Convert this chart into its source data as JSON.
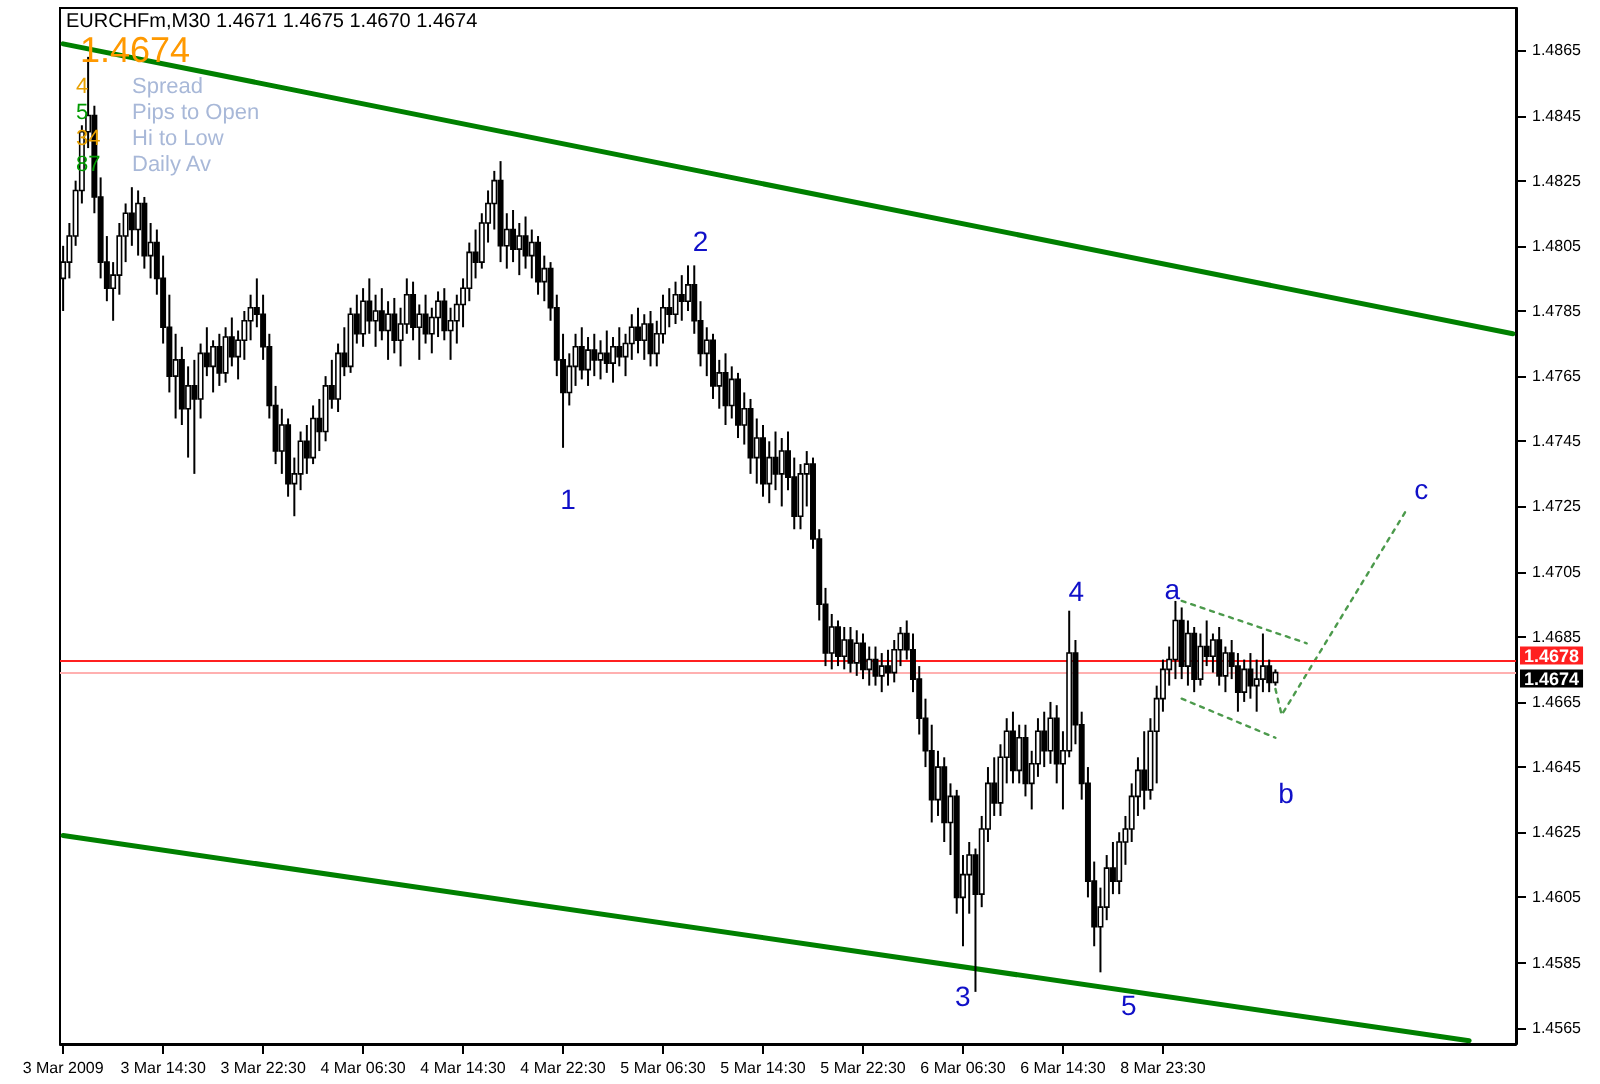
{
  "chart_data": {
    "type": "candlestick",
    "title": "EURCHFm,M30 1.4671 1.4675 1.4670 1.4674",
    "color": "#000000",
    "annotations": [
      "1.4674",
      "4",
      "Spread",
      "5",
      "Pips to Open",
      "34",
      "Hi to Low",
      "87",
      "Daily Av",
      "1",
      "2",
      "3",
      "4",
      "5",
      "a",
      "b",
      "c"
    ],
    "categories": [
      "3 Mar 2009",
      null,
      null,
      null,
      null,
      null,
      null,
      null,
      null,
      null,
      null,
      null,
      null,
      null,
      null,
      null,
      "3 Mar 14:30",
      null,
      null,
      null,
      null,
      null,
      null,
      null,
      null,
      null,
      null,
      null,
      null,
      null,
      null,
      null,
      "3 Mar 22:30",
      null,
      null,
      null,
      null,
      null,
      null,
      null,
      null,
      null,
      null,
      null,
      null,
      null,
      null,
      null,
      "4 Mar 06:30",
      null,
      null,
      null,
      null,
      null,
      null,
      null,
      null,
      null,
      null,
      null,
      null,
      null,
      null,
      null,
      "4 Mar 14:30",
      null,
      null,
      null,
      null,
      null,
      null,
      null,
      null,
      null,
      null,
      null,
      null,
      null,
      null,
      null,
      "4 Mar 22:30",
      null,
      null,
      null,
      null,
      null,
      null,
      null,
      null,
      null,
      null,
      null,
      null,
      null,
      null,
      null,
      "5 Mar 06:30",
      null,
      null,
      null,
      null,
      null,
      null,
      null,
      null,
      null,
      null,
      null,
      null,
      null,
      null,
      null,
      "5 Mar 14:30",
      null,
      null,
      null,
      null,
      null,
      null,
      null,
      null,
      null,
      null,
      null,
      null,
      null,
      null,
      null,
      "5 Mar 22:30",
      null,
      null,
      null,
      null,
      null,
      null,
      null,
      null,
      null,
      null,
      null,
      null,
      null,
      null,
      null,
      "6 Mar 06:30",
      null,
      null,
      null,
      null,
      null,
      null,
      null,
      null,
      null,
      null,
      null,
      null,
      null,
      null,
      null,
      "6 Mar 14:30",
      null,
      null,
      null,
      null,
      null,
      null,
      null,
      null,
      null,
      null,
      null,
      null,
      null,
      null,
      null,
      "8 Mar 23:30",
      null,
      null,
      null,
      null,
      null,
      null,
      null,
      null,
      null,
      null,
      null,
      null,
      null,
      null,
      null,
      null,
      null,
      null,
      null,
      null,
      null,
      null,
      null,
      null,
      null,
      null,
      null,
      null,
      null,
      null,
      null,
      null,
      null,
      null,
      null,
      null,
      null,
      null,
      null,
      null,
      null,
      null,
      null,
      null,
      null,
      null,
      null,
      null,
      null,
      null,
      null,
      null,
      null,
      null,
      null,
      null
    ],
    "ohlc": [
      [
        1.4795,
        1.4805,
        1.4785,
        1.48
      ],
      [
        1.48,
        1.4812,
        1.4795,
        1.4808
      ],
      [
        1.4808,
        1.4825,
        1.4805,
        1.4822
      ],
      [
        1.4822,
        1.4842,
        1.4818,
        1.484
      ],
      [
        1.484,
        1.4863,
        1.4835,
        1.4845
      ],
      [
        1.4845,
        1.4848,
        1.4815,
        1.482
      ],
      [
        1.482,
        1.4826,
        1.4795,
        1.48
      ],
      [
        1.48,
        1.4808,
        1.4788,
        1.4792
      ],
      [
        1.4792,
        1.48,
        1.4782,
        1.4796
      ],
      [
        1.4796,
        1.4812,
        1.479,
        1.4808
      ],
      [
        1.4808,
        1.4818,
        1.48,
        1.4815
      ],
      [
        1.4815,
        1.4823,
        1.4805,
        1.481
      ],
      [
        1.481,
        1.4822,
        1.4802,
        1.4818
      ],
      [
        1.4818,
        1.482,
        1.4798,
        1.4802
      ],
      [
        1.4802,
        1.4812,
        1.4795,
        1.4806
      ],
      [
        1.4806,
        1.481,
        1.479,
        1.4795
      ],
      [
        1.4795,
        1.4802,
        1.4775,
        1.478
      ],
      [
        1.478,
        1.479,
        1.476,
        1.4765
      ],
      [
        1.4765,
        1.4778,
        1.4752,
        1.477
      ],
      [
        1.477,
        1.4774,
        1.475,
        1.4755
      ],
      [
        1.4755,
        1.4768,
        1.474,
        1.4762
      ],
      [
        1.4762,
        1.477,
        1.4735,
        1.4758
      ],
      [
        1.4758,
        1.4775,
        1.4752,
        1.4772
      ],
      [
        1.4772,
        1.478,
        1.4765,
        1.4768
      ],
      [
        1.4768,
        1.4776,
        1.476,
        1.4774
      ],
      [
        1.4774,
        1.4778,
        1.4762,
        1.4766
      ],
      [
        1.4766,
        1.478,
        1.4763,
        1.4777
      ],
      [
        1.4777,
        1.4783,
        1.4768,
        1.4771
      ],
      [
        1.4771,
        1.4779,
        1.4764,
        1.4776
      ],
      [
        1.4776,
        1.4785,
        1.477,
        1.4782
      ],
      [
        1.4782,
        1.479,
        1.4776,
        1.4786
      ],
      [
        1.4786,
        1.4795,
        1.478,
        1.4784
      ],
      [
        1.4784,
        1.479,
        1.477,
        1.4774
      ],
      [
        1.4774,
        1.4778,
        1.4752,
        1.4756
      ],
      [
        1.4756,
        1.4762,
        1.4738,
        1.4742
      ],
      [
        1.4742,
        1.4755,
        1.4735,
        1.475
      ],
      [
        1.475,
        1.4752,
        1.4728,
        1.4732
      ],
      [
        1.4732,
        1.474,
        1.4722,
        1.4735
      ],
      [
        1.4735,
        1.4748,
        1.473,
        1.4745
      ],
      [
        1.4745,
        1.475,
        1.4735,
        1.474
      ],
      [
        1.474,
        1.4756,
        1.4738,
        1.4752
      ],
      [
        1.4752,
        1.4758,
        1.4742,
        1.4748
      ],
      [
        1.4748,
        1.4765,
        1.4745,
        1.4762
      ],
      [
        1.4762,
        1.477,
        1.4755,
        1.4758
      ],
      [
        1.4758,
        1.4775,
        1.4754,
        1.4772
      ],
      [
        1.4772,
        1.478,
        1.4765,
        1.4768
      ],
      [
        1.4768,
        1.4786,
        1.4766,
        1.4784
      ],
      [
        1.4784,
        1.479,
        1.4775,
        1.4778
      ],
      [
        1.4778,
        1.4792,
        1.4774,
        1.4788
      ],
      [
        1.4788,
        1.4795,
        1.4778,
        1.4782
      ],
      [
        1.4782,
        1.479,
        1.4774,
        1.4785
      ],
      [
        1.4785,
        1.4792,
        1.4776,
        1.4779
      ],
      [
        1.4779,
        1.4788,
        1.477,
        1.4784
      ],
      [
        1.4784,
        1.4789,
        1.4772,
        1.4776
      ],
      [
        1.4776,
        1.4786,
        1.4768,
        1.4781
      ],
      [
        1.4781,
        1.4795,
        1.4778,
        1.479
      ],
      [
        1.479,
        1.4794,
        1.4776,
        1.478
      ],
      [
        1.478,
        1.4787,
        1.477,
        1.4784
      ],
      [
        1.4784,
        1.479,
        1.4775,
        1.4778
      ],
      [
        1.4778,
        1.4786,
        1.4772,
        1.4783
      ],
      [
        1.4783,
        1.4791,
        1.4777,
        1.4788
      ],
      [
        1.4788,
        1.4792,
        1.4776,
        1.4779
      ],
      [
        1.4779,
        1.4786,
        1.477,
        1.4782
      ],
      [
        1.4782,
        1.479,
        1.4775,
        1.4787
      ],
      [
        1.4787,
        1.4795,
        1.478,
        1.4792
      ],
      [
        1.4792,
        1.4806,
        1.4788,
        1.4803
      ],
      [
        1.4803,
        1.481,
        1.4795,
        1.48
      ],
      [
        1.48,
        1.4815,
        1.4798,
        1.4812
      ],
      [
        1.4812,
        1.4822,
        1.4806,
        1.4818
      ],
      [
        1.4818,
        1.4828,
        1.481,
        1.4825
      ],
      [
        1.4825,
        1.4831,
        1.48,
        1.4805
      ],
      [
        1.4805,
        1.4815,
        1.4798,
        1.481
      ],
      [
        1.481,
        1.4816,
        1.48,
        1.4804
      ],
      [
        1.4804,
        1.4812,
        1.4796,
        1.4808
      ],
      [
        1.4808,
        1.4814,
        1.4798,
        1.4802
      ],
      [
        1.4802,
        1.481,
        1.4795,
        1.4806
      ],
      [
        1.4806,
        1.4808,
        1.479,
        1.4794
      ],
      [
        1.4794,
        1.4802,
        1.4788,
        1.4798
      ],
      [
        1.4798,
        1.48,
        1.4782,
        1.4786
      ],
      [
        1.4786,
        1.479,
        1.4765,
        1.477
      ],
      [
        1.477,
        1.4778,
        1.4743,
        1.476
      ],
      [
        1.476,
        1.4772,
        1.4756,
        1.4768
      ],
      [
        1.4768,
        1.4778,
        1.4762,
        1.4774
      ],
      [
        1.4774,
        1.478,
        1.4764,
        1.4767
      ],
      [
        1.4767,
        1.4777,
        1.4762,
        1.4773
      ],
      [
        1.4773,
        1.4778,
        1.4765,
        1.477
      ],
      [
        1.477,
        1.4776,
        1.4764,
        1.4772
      ],
      [
        1.4772,
        1.4779,
        1.4766,
        1.4769
      ],
      [
        1.4769,
        1.4777,
        1.4763,
        1.4774
      ],
      [
        1.4774,
        1.478,
        1.4768,
        1.4771
      ],
      [
        1.4771,
        1.4778,
        1.4765,
        1.4775
      ],
      [
        1.4775,
        1.4784,
        1.477,
        1.478
      ],
      [
        1.478,
        1.4786,
        1.4772,
        1.4776
      ],
      [
        1.4776,
        1.4784,
        1.477,
        1.4781
      ],
      [
        1.4781,
        1.4785,
        1.4768,
        1.4772
      ],
      [
        1.4772,
        1.4782,
        1.4768,
        1.4778
      ],
      [
        1.4778,
        1.479,
        1.4775,
        1.4786
      ],
      [
        1.4786,
        1.4792,
        1.478,
        1.4784
      ],
      [
        1.4784,
        1.4794,
        1.4781,
        1.479
      ],
      [
        1.479,
        1.4796,
        1.4782,
        1.4788
      ],
      [
        1.4788,
        1.4799,
        1.4785,
        1.4793
      ],
      [
        1.4793,
        1.4799,
        1.4778,
        1.4782
      ],
      [
        1.4782,
        1.4788,
        1.4768,
        1.4772
      ],
      [
        1.4772,
        1.478,
        1.4765,
        1.4776
      ],
      [
        1.4776,
        1.4778,
        1.4758,
        1.4762
      ],
      [
        1.4762,
        1.477,
        1.4755,
        1.4766
      ],
      [
        1.4766,
        1.4772,
        1.475,
        1.4756
      ],
      [
        1.4756,
        1.4768,
        1.4752,
        1.4764
      ],
      [
        1.4764,
        1.4766,
        1.4746,
        1.475
      ],
      [
        1.475,
        1.476,
        1.4744,
        1.4755
      ],
      [
        1.4755,
        1.4758,
        1.4735,
        1.474
      ],
      [
        1.474,
        1.4752,
        1.4732,
        1.4746
      ],
      [
        1.4746,
        1.475,
        1.4728,
        1.4732
      ],
      [
        1.4732,
        1.4745,
        1.4726,
        1.474
      ],
      [
        1.474,
        1.4748,
        1.473,
        1.4735
      ],
      [
        1.4735,
        1.4746,
        1.4725,
        1.4742
      ],
      [
        1.4742,
        1.4748,
        1.473,
        1.4734
      ],
      [
        1.4734,
        1.474,
        1.4718,
        1.4722
      ],
      [
        1.4722,
        1.4738,
        1.4718,
        1.4735
      ],
      [
        1.4735,
        1.4742,
        1.4725,
        1.4738
      ],
      [
        1.4738,
        1.474,
        1.4712,
        1.4715
      ],
      [
        1.4715,
        1.4718,
        1.469,
        1.4695
      ],
      [
        1.4695,
        1.47,
        1.4676,
        1.468
      ],
      [
        1.468,
        1.4692,
        1.4675,
        1.4688
      ],
      [
        1.4688,
        1.469,
        1.4676,
        1.4679
      ],
      [
        1.4679,
        1.4688,
        1.4675,
        1.4684
      ],
      [
        1.4684,
        1.4688,
        1.4674,
        1.4677
      ],
      [
        1.4677,
        1.4687,
        1.4673,
        1.4683
      ],
      [
        1.4683,
        1.4686,
        1.4672,
        1.4675
      ],
      [
        1.4675,
        1.4682,
        1.467,
        1.4678
      ],
      [
        1.4678,
        1.4682,
        1.467,
        1.4673
      ],
      [
        1.4673,
        1.468,
        1.4668,
        1.4676
      ],
      [
        1.4676,
        1.4681,
        1.467,
        1.4674
      ],
      [
        1.4674,
        1.4684,
        1.4671,
        1.4681
      ],
      [
        1.4681,
        1.4688,
        1.4676,
        1.4686
      ],
      [
        1.4686,
        1.469,
        1.4678,
        1.4681
      ],
      [
        1.4681,
        1.4686,
        1.4668,
        1.4672
      ],
      [
        1.4672,
        1.4676,
        1.4655,
        1.466
      ],
      [
        1.466,
        1.4666,
        1.4645,
        1.465
      ],
      [
        1.465,
        1.4658,
        1.4628,
        1.4635
      ],
      [
        1.4635,
        1.465,
        1.463,
        1.4645
      ],
      [
        1.4645,
        1.4648,
        1.4622,
        1.4628
      ],
      [
        1.4628,
        1.464,
        1.4618,
        1.4636
      ],
      [
        1.4636,
        1.4638,
        1.46,
        1.4605
      ],
      [
        1.4605,
        1.4618,
        1.459,
        1.4612
      ],
      [
        1.4612,
        1.4622,
        1.46,
        1.4618
      ],
      [
        1.4618,
        1.462,
        1.4576,
        1.4606
      ],
      [
        1.4606,
        1.463,
        1.4602,
        1.4626
      ],
      [
        1.4626,
        1.4645,
        1.4622,
        1.464
      ],
      [
        1.464,
        1.4648,
        1.463,
        1.4634
      ],
      [
        1.4634,
        1.4652,
        1.463,
        1.4648
      ],
      [
        1.4648,
        1.466,
        1.464,
        1.4656
      ],
      [
        1.4656,
        1.4662,
        1.464,
        1.4644
      ],
      [
        1.4644,
        1.4658,
        1.464,
        1.4654
      ],
      [
        1.4654,
        1.4658,
        1.4636,
        1.464
      ],
      [
        1.464,
        1.465,
        1.4632,
        1.4646
      ],
      [
        1.4646,
        1.466,
        1.4642,
        1.4656
      ],
      [
        1.4656,
        1.4662,
        1.4645,
        1.465
      ],
      [
        1.465,
        1.4665,
        1.4646,
        1.466
      ],
      [
        1.466,
        1.4664,
        1.464,
        1.4646
      ],
      [
        1.4646,
        1.4656,
        1.4632,
        1.465
      ],
      [
        1.465,
        1.4693,
        1.4648,
        1.468
      ],
      [
        1.468,
        1.4684,
        1.4652,
        1.4658
      ],
      [
        1.4658,
        1.4662,
        1.4635,
        1.464
      ],
      [
        1.464,
        1.4645,
        1.4605,
        1.461
      ],
      [
        1.461,
        1.4616,
        1.459,
        1.4596
      ],
      [
        1.4596,
        1.4608,
        1.4582,
        1.4602
      ],
      [
        1.4602,
        1.4618,
        1.4598,
        1.4614
      ],
      [
        1.4614,
        1.4622,
        1.4606,
        1.461
      ],
      [
        1.461,
        1.4625,
        1.4606,
        1.4622
      ],
      [
        1.4622,
        1.463,
        1.4615,
        1.4626
      ],
      [
        1.4626,
        1.464,
        1.4622,
        1.4636
      ],
      [
        1.4636,
        1.4648,
        1.463,
        1.4644
      ],
      [
        1.4644,
        1.4656,
        1.4632,
        1.4638
      ],
      [
        1.4638,
        1.466,
        1.4635,
        1.4656
      ],
      [
        1.4656,
        1.467,
        1.464,
        1.4666
      ],
      [
        1.4666,
        1.4678,
        1.4662,
        1.4675
      ],
      [
        1.4675,
        1.4682,
        1.467,
        1.4678
      ],
      [
        1.4678,
        1.4696,
        1.4672,
        1.469
      ],
      [
        1.469,
        1.4694,
        1.4672,
        1.4676
      ],
      [
        1.4676,
        1.469,
        1.467,
        1.4686
      ],
      [
        1.4686,
        1.4688,
        1.4668,
        1.4672
      ],
      [
        1.4672,
        1.4686,
        1.467,
        1.4682
      ],
      [
        1.4682,
        1.469,
        1.4676,
        1.4679
      ],
      [
        1.4679,
        1.4686,
        1.4674,
        1.4684
      ],
      [
        1.4684,
        1.4688,
        1.467,
        1.4673
      ],
      [
        1.4673,
        1.4682,
        1.4668,
        1.468
      ],
      [
        1.468,
        1.4684,
        1.4672,
        1.4676
      ],
      [
        1.4676,
        1.468,
        1.4662,
        1.4668
      ],
      [
        1.4668,
        1.4678,
        1.4665,
        1.4675
      ],
      [
        1.4675,
        1.468,
        1.4666,
        1.467
      ],
      [
        1.467,
        1.4678,
        1.4662,
        1.4672
      ],
      [
        1.4672,
        1.4686,
        1.4668,
        1.4676
      ],
      [
        1.4676,
        1.4678,
        1.4668,
        1.4671
      ],
      [
        1.4671,
        1.4675,
        1.467,
        1.4674
      ],
      null,
      null,
      null,
      null,
      null,
      null,
      null,
      null,
      null,
      null,
      null,
      null,
      null,
      null,
      null,
      null,
      null,
      null,
      null,
      null,
      null,
      null,
      null,
      null,
      null,
      null,
      null,
      null,
      null,
      null,
      null,
      null,
      null,
      null,
      null,
      null,
      null,
      null
    ],
    "series": [
      {
        "type": "line",
        "color": "#008000",
        "line_style": "solid",
        "marker": "none",
        "values": [
          1.4867,
          null,
          null,
          null,
          null,
          null,
          null,
          null,
          null,
          null,
          null,
          null,
          null,
          null,
          null,
          null,
          null,
          null,
          null,
          null,
          null,
          null,
          null,
          null,
          null,
          null,
          null,
          null,
          null,
          null,
          null,
          null,
          null,
          null,
          null,
          null,
          null,
          null,
          null,
          null,
          null,
          null,
          null,
          null,
          null,
          null,
          null,
          null,
          null,
          null,
          null,
          null,
          null,
          null,
          null,
          null,
          null,
          null,
          null,
          null,
          null,
          null,
          null,
          null,
          null,
          null,
          null,
          null,
          null,
          null,
          null,
          null,
          null,
          null,
          null,
          null,
          null,
          null,
          null,
          null,
          null,
          null,
          null,
          null,
          null,
          null,
          null,
          null,
          null,
          null,
          null,
          null,
          null,
          null,
          null,
          null,
          null,
          null,
          null,
          null,
          null,
          null,
          null,
          null,
          null,
          null,
          null,
          null,
          null,
          null,
          null,
          null,
          null,
          null,
          null,
          null,
          null,
          null,
          null,
          null,
          null,
          null,
          null,
          null,
          null,
          null,
          null,
          null,
          null,
          null,
          null,
          null,
          null,
          null,
          null,
          null,
          null,
          null,
          null,
          null,
          null,
          null,
          null,
          null,
          null,
          null,
          null,
          null,
          null,
          null,
          null,
          null,
          null,
          null,
          null,
          null,
          null,
          null,
          null,
          null,
          null,
          null,
          null,
          null,
          null,
          null,
          null,
          null,
          null,
          null,
          null,
          null,
          null,
          null,
          null,
          null,
          null,
          null,
          null,
          null,
          null,
          null,
          null,
          null,
          null,
          null,
          null,
          null,
          null,
          null,
          null,
          null,
          null,
          null,
          null,
          null,
          null,
          null,
          null,
          null,
          null,
          null,
          null,
          null,
          null,
          null,
          null,
          null,
          null,
          null,
          null,
          null,
          null,
          null,
          null,
          null,
          null,
          null,
          null,
          null,
          null,
          null,
          null,
          null,
          null,
          null,
          null,
          null,
          null,
          null,
          null,
          null,
          1.4778
        ]
      },
      {
        "type": "line",
        "color": "#008000",
        "line_style": "solid",
        "marker": "none",
        "values": [
          1.4624,
          null,
          null,
          null,
          null,
          null,
          null,
          null,
          null,
          null,
          null,
          null,
          null,
          null,
          null,
          null,
          null,
          null,
          null,
          null,
          null,
          null,
          null,
          null,
          null,
          null,
          null,
          null,
          null,
          null,
          null,
          null,
          null,
          null,
          null,
          null,
          null,
          null,
          null,
          null,
          null,
          null,
          null,
          null,
          null,
          null,
          null,
          null,
          null,
          null,
          null,
          null,
          null,
          null,
          null,
          null,
          null,
          null,
          null,
          null,
          null,
          null,
          null,
          null,
          null,
          null,
          null,
          null,
          null,
          null,
          null,
          null,
          null,
          null,
          null,
          null,
          null,
          null,
          null,
          null,
          null,
          null,
          null,
          null,
          null,
          null,
          null,
          null,
          null,
          null,
          null,
          null,
          null,
          null,
          null,
          null,
          null,
          null,
          null,
          null,
          null,
          null,
          null,
          null,
          null,
          null,
          null,
          null,
          null,
          null,
          null,
          null,
          null,
          null,
          null,
          null,
          null,
          null,
          null,
          null,
          null,
          null,
          null,
          null,
          null,
          null,
          null,
          null,
          null,
          null,
          null,
          null,
          null,
          null,
          null,
          null,
          null,
          null,
          null,
          null,
          null,
          null,
          null,
          null,
          null,
          null,
          null,
          null,
          null,
          null,
          null,
          null,
          null,
          null,
          null,
          null,
          null,
          null,
          null,
          null,
          null,
          null,
          null,
          null,
          null,
          null,
          null,
          null,
          null,
          null,
          null,
          null,
          null,
          null,
          null,
          null,
          null,
          null,
          null,
          null,
          null,
          null,
          null,
          null,
          null,
          null,
          null,
          null,
          null,
          null,
          null,
          null,
          null,
          null,
          null,
          null,
          null,
          null,
          null,
          null,
          null,
          null,
          null,
          null,
          null,
          null,
          null,
          null,
          null,
          null,
          null,
          null,
          null,
          null,
          null,
          null,
          null,
          null,
          null,
          null,
          null,
          null,
          null,
          null,
          null,
          1.4561,
          null,
          null,
          null,
          null,
          null,
          null,
          null
        ]
      },
      {
        "type": "line",
        "color": "#4c9a4c",
        "line_style": "dotted",
        "marker": "none",
        "values": [
          null,
          null,
          null,
          null,
          null,
          null,
          null,
          null,
          null,
          null,
          null,
          null,
          null,
          null,
          null,
          null,
          null,
          null,
          null,
          null,
          null,
          null,
          null,
          null,
          null,
          null,
          null,
          null,
          null,
          null,
          null,
          null,
          null,
          null,
          null,
          null,
          null,
          null,
          null,
          null,
          null,
          null,
          null,
          null,
          null,
          null,
          null,
          null,
          null,
          null,
          null,
          null,
          null,
          null,
          null,
          null,
          null,
          null,
          null,
          null,
          null,
          null,
          null,
          null,
          null,
          null,
          null,
          null,
          null,
          null,
          null,
          null,
          null,
          null,
          null,
          null,
          null,
          null,
          null,
          null,
          null,
          null,
          null,
          null,
          null,
          null,
          null,
          null,
          null,
          null,
          null,
          null,
          null,
          null,
          null,
          null,
          null,
          null,
          null,
          null,
          null,
          null,
          null,
          null,
          null,
          null,
          null,
          null,
          null,
          null,
          null,
          null,
          null,
          null,
          null,
          null,
          null,
          null,
          null,
          null,
          null,
          null,
          null,
          null,
          null,
          null,
          null,
          null,
          null,
          null,
          null,
          null,
          null,
          null,
          null,
          null,
          null,
          null,
          null,
          null,
          null,
          null,
          null,
          null,
          null,
          null,
          null,
          null,
          null,
          null,
          null,
          null,
          null,
          null,
          null,
          null,
          null,
          null,
          null,
          null,
          null,
          null,
          null,
          null,
          null,
          null,
          null,
          null,
          null,
          null,
          null,
          null,
          null,
          null,
          null,
          null,
          null,
          null,
          null,
          1.4696,
          null,
          null,
          null,
          null,
          null,
          null,
          null,
          null,
          null,
          null,
          null,
          null,
          null,
          null,
          null,
          null,
          null,
          null,
          null,
          1.4683,
          null,
          null,
          null,
          null,
          null,
          null,
          null,
          null,
          null,
          null,
          null,
          null,
          null,
          null,
          null,
          null,
          null,
          null,
          null,
          null,
          null,
          null,
          null,
          null,
          null,
          null,
          null,
          null,
          null,
          null,
          null,
          null,
          null
        ]
      },
      {
        "type": "line",
        "color": "#4c9a4c",
        "line_style": "dotted",
        "marker": "none",
        "values": [
          null,
          null,
          null,
          null,
          null,
          null,
          null,
          null,
          null,
          null,
          null,
          null,
          null,
          null,
          null,
          null,
          null,
          null,
          null,
          null,
          null,
          null,
          null,
          null,
          null,
          null,
          null,
          null,
          null,
          null,
          null,
          null,
          null,
          null,
          null,
          null,
          null,
          null,
          null,
          null,
          null,
          null,
          null,
          null,
          null,
          null,
          null,
          null,
          null,
          null,
          null,
          null,
          null,
          null,
          null,
          null,
          null,
          null,
          null,
          null,
          null,
          null,
          null,
          null,
          null,
          null,
          null,
          null,
          null,
          null,
          null,
          null,
          null,
          null,
          null,
          null,
          null,
          null,
          null,
          null,
          null,
          null,
          null,
          null,
          null,
          null,
          null,
          null,
          null,
          null,
          null,
          null,
          null,
          null,
          null,
          null,
          null,
          null,
          null,
          null,
          null,
          null,
          null,
          null,
          null,
          null,
          null,
          null,
          null,
          null,
          null,
          null,
          null,
          null,
          null,
          null,
          null,
          null,
          null,
          null,
          null,
          null,
          null,
          null,
          null,
          null,
          null,
          null,
          null,
          null,
          null,
          null,
          null,
          null,
          null,
          null,
          null,
          null,
          null,
          null,
          null,
          null,
          null,
          null,
          null,
          null,
          null,
          null,
          null,
          null,
          null,
          null,
          null,
          null,
          null,
          null,
          null,
          null,
          null,
          null,
          null,
          null,
          null,
          null,
          null,
          null,
          null,
          null,
          null,
          null,
          null,
          null,
          null,
          null,
          null,
          null,
          null,
          null,
          null,
          1.4666,
          null,
          null,
          null,
          null,
          null,
          null,
          null,
          null,
          null,
          null,
          null,
          null,
          null,
          null,
          1.4654,
          null,
          null,
          null,
          null,
          null,
          null,
          null,
          null,
          null,
          null,
          null,
          null,
          null,
          null,
          null,
          null,
          null,
          null,
          null,
          null,
          null,
          null,
          null,
          null,
          null,
          null,
          null,
          null,
          null,
          null,
          null,
          null,
          null,
          null,
          null,
          null,
          null,
          null
        ]
      },
      {
        "type": "line",
        "color": "#4c9a4c",
        "line_style": "dotted",
        "marker": "none",
        "values": [
          null,
          null,
          null,
          null,
          null,
          null,
          null,
          null,
          null,
          null,
          null,
          null,
          null,
          null,
          null,
          null,
          null,
          null,
          null,
          null,
          null,
          null,
          null,
          null,
          null,
          null,
          null,
          null,
          null,
          null,
          null,
          null,
          null,
          null,
          null,
          null,
          null,
          null,
          null,
          null,
          null,
          null,
          null,
          null,
          null,
          null,
          null,
          null,
          null,
          null,
          null,
          null,
          null,
          null,
          null,
          null,
          null,
          null,
          null,
          null,
          null,
          null,
          null,
          null,
          null,
          null,
          null,
          null,
          null,
          null,
          null,
          null,
          null,
          null,
          null,
          null,
          null,
          null,
          null,
          null,
          null,
          null,
          null,
          null,
          null,
          null,
          null,
          null,
          null,
          null,
          null,
          null,
          null,
          null,
          null,
          null,
          null,
          null,
          null,
          null,
          null,
          null,
          null,
          null,
          null,
          null,
          null,
          null,
          null,
          null,
          null,
          null,
          null,
          null,
          null,
          null,
          null,
          null,
          null,
          null,
          null,
          null,
          null,
          null,
          null,
          null,
          null,
          null,
          null,
          null,
          null,
          null,
          null,
          null,
          null,
          null,
          null,
          null,
          null,
          null,
          null,
          null,
          null,
          null,
          null,
          null,
          null,
          null,
          null,
          null,
          null,
          null,
          null,
          null,
          null,
          null,
          null,
          null,
          null,
          null,
          null,
          null,
          null,
          null,
          null,
          null,
          null,
          null,
          null,
          null,
          null,
          null,
          null,
          null,
          null,
          null,
          null,
          null,
          null,
          null,
          null,
          null,
          null,
          null,
          null,
          null,
          null,
          null,
          null,
          null,
          null,
          null,
          null,
          null,
          1.4669,
          1.4661,
          null,
          null,
          null,
          null,
          null,
          null,
          null,
          null,
          null,
          null,
          null,
          null,
          null,
          null,
          null,
          null,
          null,
          null,
          null,
          1.4724,
          null,
          null,
          null,
          null,
          null,
          null,
          null,
          null,
          null,
          null,
          null,
          null,
          null,
          null,
          null,
          null,
          null
        ]
      }
    ],
    "ref_lines": [
      {
        "axis": "y",
        "value": 1.4678,
        "label": "1.4678",
        "color": "#ff2020"
      },
      {
        "axis": "y",
        "value": 1.4674,
        "label": "1.4674",
        "color": "#ffb0b0"
      }
    ],
    "ylim": [
      1.456,
      1.4878
    ],
    "yticks": [
      1.4565,
      1.4585,
      1.4605,
      1.4625,
      1.4645,
      1.4665,
      1.4685,
      1.4705,
      1.4725,
      1.4745,
      1.4765,
      1.4785,
      1.4805,
      1.4825,
      1.4845,
      1.4865
    ]
  }
}
